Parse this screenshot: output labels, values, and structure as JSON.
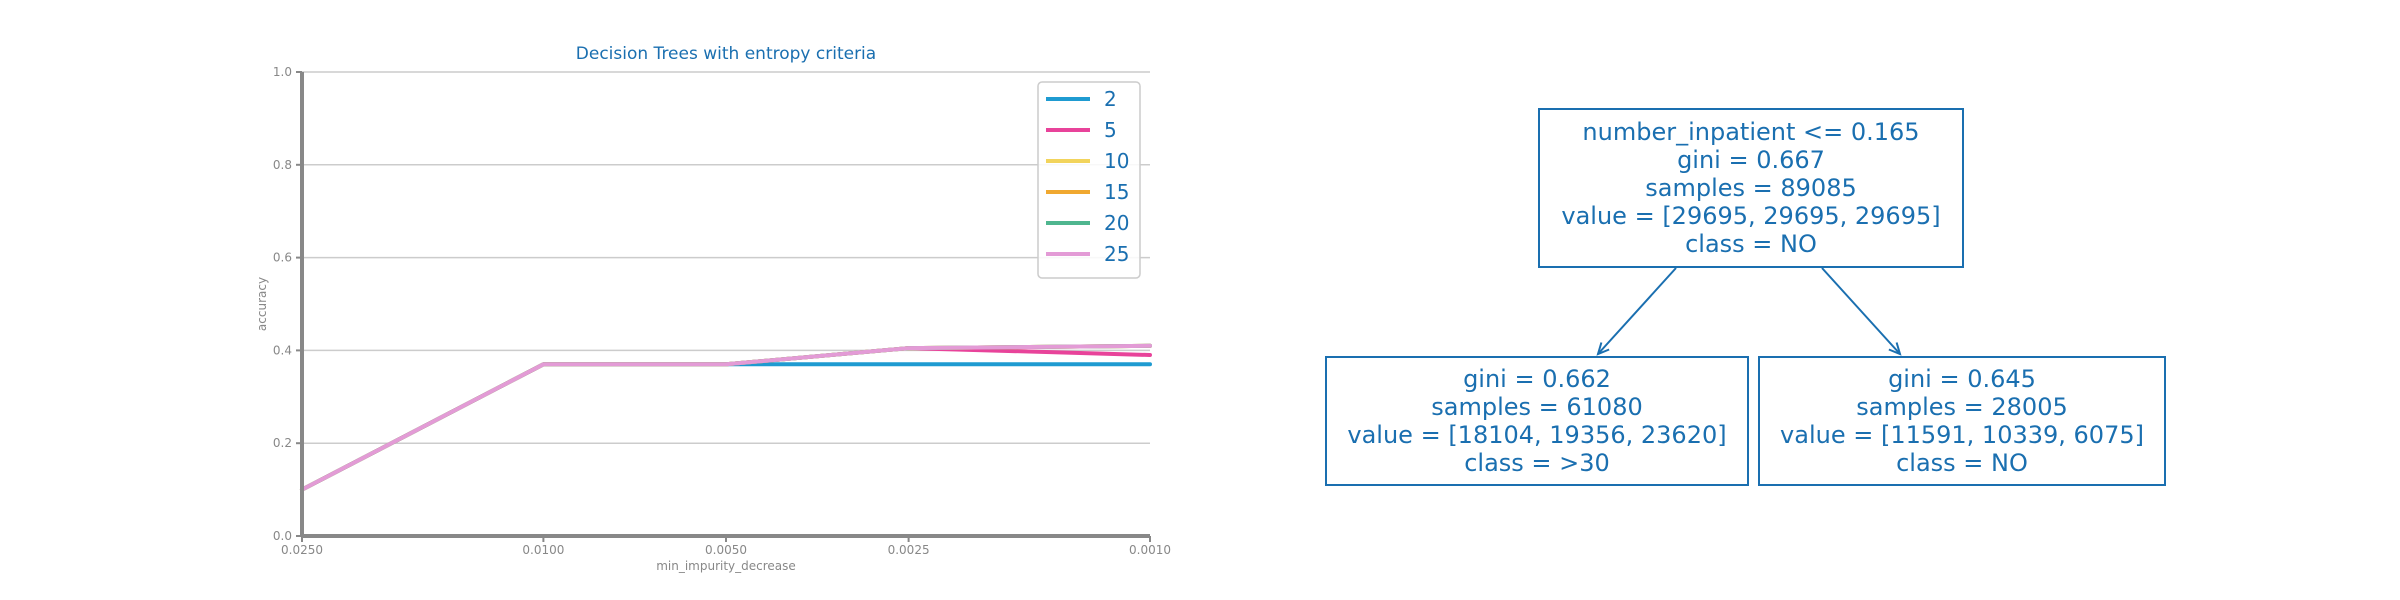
{
  "chart_data": {
    "type": "line",
    "title": "Decision Trees with entropy criteria",
    "xlabel": "min_impurity_decrease",
    "ylabel": "accuracy",
    "x": [
      0.025,
      0.01,
      0.005,
      0.0025,
      0.001
    ],
    "x_tick_labels": [
      "0.0250",
      "0.0100",
      "0.0050",
      "0.0025",
      "0.0010"
    ],
    "x_axis": "reversed",
    "ylim": [
      0.0,
      1.0
    ],
    "y_ticks": [
      0.0,
      0.2,
      0.4,
      0.6,
      0.8,
      1.0
    ],
    "y_tick_labels": [
      "0.0",
      "0.2",
      "0.4",
      "0.6",
      "0.8",
      "1.0"
    ],
    "grid": "horizontal",
    "legend_position": "top-right",
    "series": [
      {
        "name": "2",
        "color": "#1f9bd1",
        "values": [
          0.1,
          0.37,
          0.37,
          0.37,
          0.37
        ]
      },
      {
        "name": "5",
        "color": "#e8439a",
        "values": [
          0.1,
          0.37,
          0.37,
          0.405,
          0.39
        ]
      },
      {
        "name": "10",
        "color": "#f2d45c",
        "values": [
          0.1,
          0.37,
          0.37,
          0.405,
          0.41
        ]
      },
      {
        "name": "15",
        "color": "#f0a830",
        "values": [
          0.1,
          0.37,
          0.37,
          0.405,
          0.41
        ]
      },
      {
        "name": "20",
        "color": "#4fb68f",
        "values": [
          0.1,
          0.37,
          0.37,
          0.405,
          0.41
        ]
      },
      {
        "name": "25",
        "color": "#e39bd6",
        "values": [
          0.1,
          0.37,
          0.37,
          0.405,
          0.41
        ]
      }
    ]
  },
  "tree": {
    "root": {
      "lines": [
        "number_inpatient <= 0.165",
        "gini = 0.667",
        "samples = 89085",
        "value = [29695, 29695, 29695]",
        "class = NO"
      ]
    },
    "left": {
      "lines": [
        "gini = 0.662",
        "samples = 61080",
        "value = [18104, 19356, 23620]",
        "class = >30"
      ]
    },
    "right": {
      "lines": [
        "gini = 0.645",
        "samples = 28005",
        "value = [11591, 10339, 6075]",
        "class = NO"
      ]
    }
  },
  "colors": {
    "text": "#1a6fb0",
    "axis": "#888888",
    "grid": "#cccccc"
  }
}
